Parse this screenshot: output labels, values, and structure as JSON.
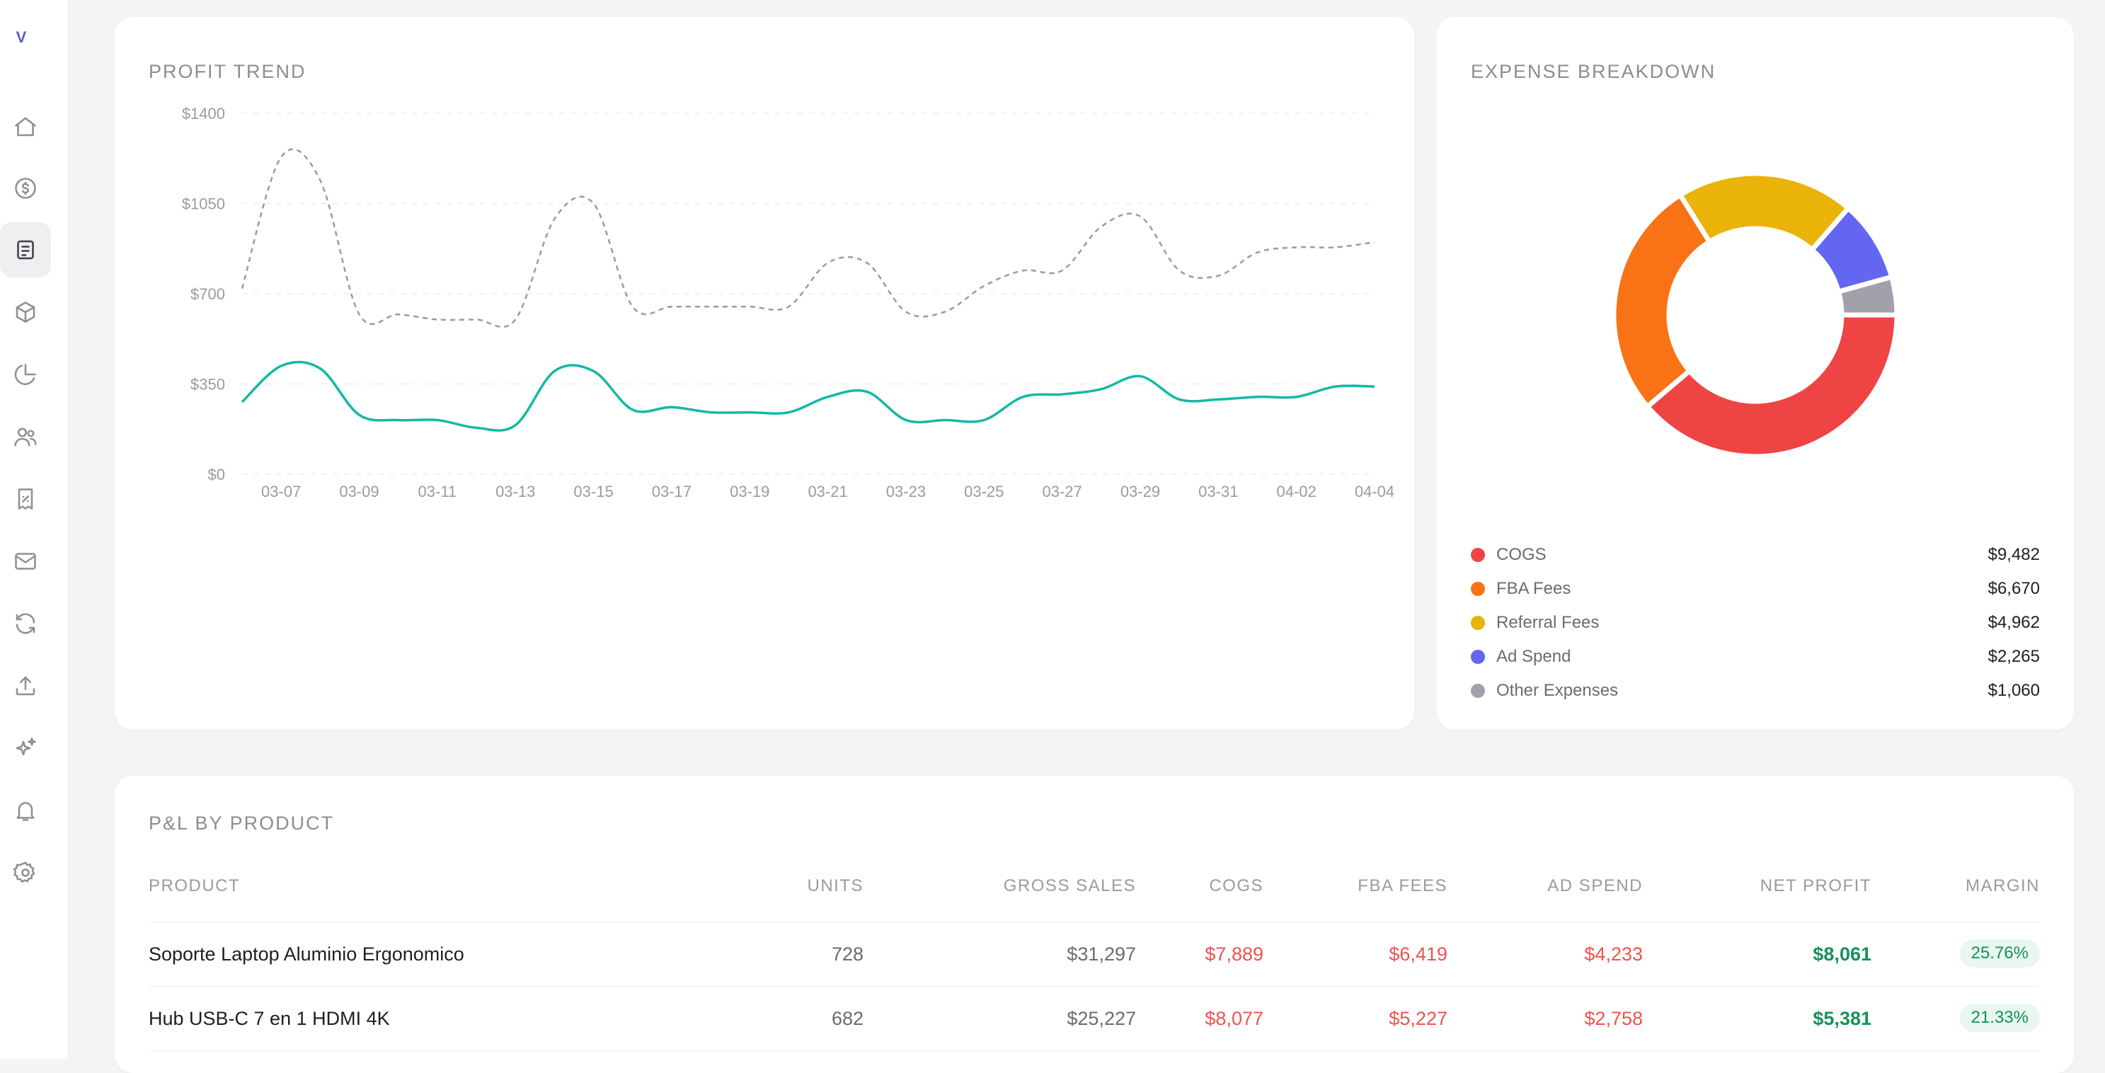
{
  "app": {
    "logo_text": "V"
  },
  "sidebar": {
    "items": [
      {
        "icon": "home-icon",
        "active": false
      },
      {
        "icon": "dollar-icon",
        "active": false
      },
      {
        "icon": "report-icon",
        "active": true
      },
      {
        "icon": "box-icon",
        "active": false
      },
      {
        "icon": "pie-chart-icon",
        "active": false
      },
      {
        "icon": "users-icon",
        "active": false
      },
      {
        "icon": "receipt-icon",
        "active": false
      },
      {
        "icon": "mail-icon",
        "active": false
      },
      {
        "icon": "refresh-icon",
        "active": false
      },
      {
        "icon": "upload-icon",
        "active": false
      },
      {
        "icon": "sparkles-icon",
        "active": false
      },
      {
        "icon": "bell-icon",
        "active": false
      },
      {
        "icon": "gear-icon",
        "active": false
      }
    ]
  },
  "profit_trend": {
    "title": "PROFIT TREND",
    "chart_data": {
      "type": "line",
      "x": [
        "03-06",
        "03-07",
        "03-08",
        "03-09",
        "03-10",
        "03-11",
        "03-12",
        "03-13",
        "03-14",
        "03-15",
        "03-16",
        "03-17",
        "03-18",
        "03-19",
        "03-20",
        "03-21",
        "03-22",
        "03-23",
        "03-24",
        "03-25",
        "03-26",
        "03-27",
        "03-28",
        "03-29",
        "03-30",
        "03-31",
        "04-01",
        "04-02",
        "04-03",
        "04-04"
      ],
      "xticks": [
        "03-07",
        "03-09",
        "03-11",
        "03-13",
        "03-15",
        "03-17",
        "03-19",
        "03-21",
        "03-23",
        "03-25",
        "03-27",
        "03-29",
        "03-31",
        "04-02",
        "04-04"
      ],
      "yticks": [
        "$0",
        "$350",
        "$700",
        "$1050",
        "$1400"
      ],
      "ylim": [
        0,
        1400
      ],
      "grid": "horizontal-dashed",
      "series": [
        {
          "color": "#9a9aa1",
          "style": "dashed",
          "values": [
            720,
            1230,
            1140,
            620,
            620,
            600,
            600,
            600,
            990,
            1050,
            650,
            650,
            650,
            650,
            650,
            820,
            820,
            630,
            630,
            730,
            790,
            790,
            960,
            1000,
            790,
            770,
            860,
            880,
            880,
            900
          ]
        },
        {
          "color": "#14b8a6",
          "style": "solid",
          "values": [
            280,
            420,
            410,
            230,
            210,
            210,
            180,
            190,
            400,
            400,
            250,
            260,
            240,
            240,
            240,
            300,
            320,
            210,
            210,
            210,
            300,
            310,
            330,
            380,
            290,
            290,
            300,
            300,
            340,
            340
          ]
        }
      ]
    }
  },
  "expense_breakdown": {
    "title": "EXPENSE BREAKDOWN",
    "chart_data": {
      "type": "pie",
      "donut": true,
      "categories": [
        "COGS",
        "FBA Fees",
        "Referral Fees",
        "Ad Spend",
        "Other Expenses"
      ],
      "values": [
        9482,
        6670,
        4962,
        2265,
        1060
      ],
      "colors": [
        "#ef4444",
        "#f97316",
        "#eab308",
        "#6366f1",
        "#a1a1aa"
      ]
    },
    "legend": [
      {
        "label": "COGS",
        "value": "$9,482",
        "color": "#ef4444"
      },
      {
        "label": "FBA Fees",
        "value": "$6,670",
        "color": "#f97316"
      },
      {
        "label": "Referral Fees",
        "value": "$4,962",
        "color": "#eab308"
      },
      {
        "label": "Ad Spend",
        "value": "$2,265",
        "color": "#6366f1"
      },
      {
        "label": "Other Expenses",
        "value": "$1,060",
        "color": "#a1a1aa"
      }
    ]
  },
  "pl_by_product": {
    "title": "P&L BY PRODUCT",
    "columns": [
      "PRODUCT",
      "UNITS",
      "GROSS SALES",
      "COGS",
      "FBA FEES",
      "AD SPEND",
      "NET PROFIT",
      "MARGIN"
    ],
    "rows": [
      {
        "product": "Soporte Laptop Aluminio Ergonomico",
        "units": "728",
        "gross_sales": "$31,297",
        "cogs": "$7,889",
        "fba_fees": "$6,419",
        "ad_spend": "$4,233",
        "net_profit": "$8,061",
        "margin": "25.76%"
      },
      {
        "product": "Hub USB-C 7 en 1 HDMI 4K",
        "units": "682",
        "gross_sales": "$25,227",
        "cogs": "$8,077",
        "fba_fees": "$5,227",
        "ad_spend": "$2,758",
        "net_profit": "$5,381",
        "margin": "21.33%"
      }
    ]
  }
}
